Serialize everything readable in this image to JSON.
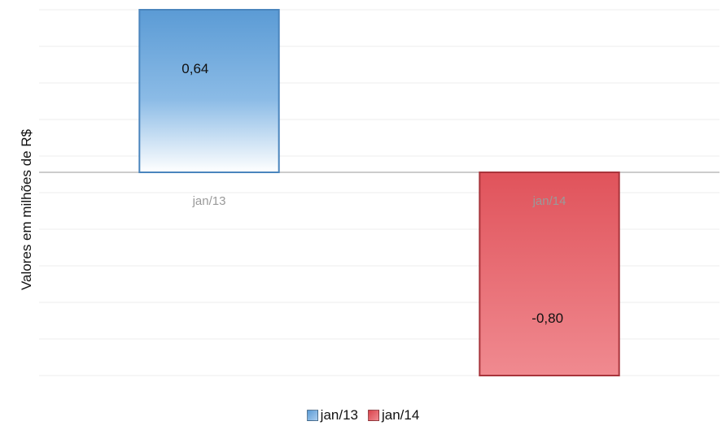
{
  "chart_data": {
    "type": "bar",
    "categories": [
      "jan/13",
      "jan/14"
    ],
    "series": [
      {
        "name": "jan/13",
        "values": [
          0.64,
          null
        ],
        "data_label": "0,64",
        "color_top": "#5b9bd5",
        "color_bottom": "#ffffff"
      },
      {
        "name": "jan/14",
        "values": [
          null,
          -0.8
        ],
        "data_label": "-0,80",
        "color_top": "#e0535b",
        "color_bottom": "#f08a90"
      }
    ],
    "ylabel": "Valores em milhões de R$",
    "ylim": [
      -0.8,
      0.64
    ],
    "grid": true,
    "legend_position": "bottom"
  }
}
